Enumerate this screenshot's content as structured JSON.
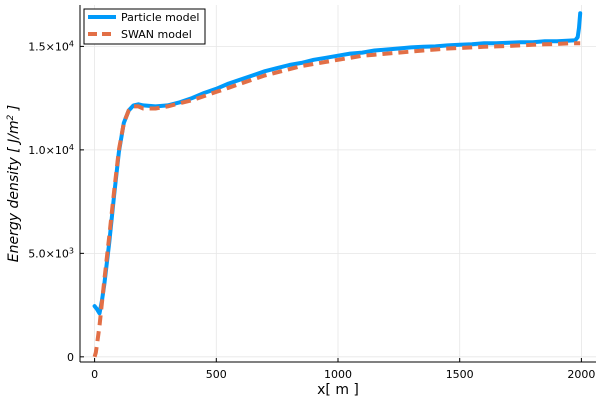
{
  "chart_data": {
    "type": "line",
    "xlabel": "x[ m ]",
    "ylabel_main": "Energy density [ J/m",
    "ylabel_sup": "2",
    "ylabel_close": " ]",
    "xlim": [
      -60,
      2060
    ],
    "ylim": [
      -250,
      17000
    ],
    "grid": true,
    "legend_position": "top-left",
    "x_ticks": [
      {
        "value": 0,
        "label": "0"
      },
      {
        "value": 500,
        "label": "500"
      },
      {
        "value": 1000,
        "label": "1000"
      },
      {
        "value": 1500,
        "label": "1500"
      },
      {
        "value": 2000,
        "label": "2000"
      }
    ],
    "y_ticks": [
      {
        "value": 0,
        "label": "0",
        "mant": "",
        "exp": ""
      },
      {
        "value": 5000,
        "label": "",
        "mant": "5.0×10",
        "exp": "3"
      },
      {
        "value": 10000,
        "label": "",
        "mant": "1.0×10",
        "exp": "4"
      },
      {
        "value": 15000,
        "label": "",
        "mant": "1.5×10",
        "exp": "4"
      }
    ],
    "series": [
      {
        "name": "Particle model",
        "color": "#009AFA",
        "dashed": false,
        "x": [
          0,
          10,
          20,
          30,
          40,
          60,
          80,
          100,
          120,
          140,
          160,
          180,
          200,
          250,
          300,
          350,
          400,
          450,
          500,
          550,
          600,
          650,
          700,
          750,
          800,
          850,
          900,
          950,
          1000,
          1050,
          1100,
          1150,
          1200,
          1250,
          1300,
          1350,
          1400,
          1450,
          1500,
          1550,
          1600,
          1650,
          1700,
          1750,
          1800,
          1850,
          1900,
          1950,
          1975,
          1985,
          1990,
          1995
        ],
        "y": [
          2450,
          2300,
          2100,
          2700,
          3500,
          5500,
          7800,
          9900,
          11300,
          11900,
          12150,
          12200,
          12150,
          12100,
          12150,
          12300,
          12500,
          12750,
          12950,
          13200,
          13400,
          13600,
          13800,
          13950,
          14100,
          14200,
          14350,
          14450,
          14550,
          14650,
          14700,
          14800,
          14850,
          14900,
          14950,
          14980,
          15000,
          15050,
          15080,
          15100,
          15150,
          15150,
          15180,
          15200,
          15200,
          15250,
          15250,
          15280,
          15300,
          15450,
          15900,
          16600
        ]
      },
      {
        "name": "SWAN model",
        "color": "#E26F46",
        "dashed": true,
        "x": [
          0,
          5,
          10,
          20,
          30,
          40,
          60,
          80,
          100,
          120,
          140,
          160,
          180,
          200,
          250,
          300,
          350,
          400,
          450,
          500,
          550,
          600,
          650,
          700,
          750,
          800,
          850,
          900,
          950,
          1000,
          1050,
          1100,
          1150,
          1200,
          1250,
          1300,
          1350,
          1400,
          1450,
          1500,
          1550,
          1600,
          1650,
          1700,
          1750,
          1800,
          1850,
          1900,
          1950,
          1995
        ],
        "y": [
          0,
          200,
          600,
          1500,
          2600,
          3700,
          5800,
          8000,
          10000,
          11300,
          11900,
          12100,
          12100,
          12000,
          12000,
          12100,
          12250,
          12400,
          12600,
          12800,
          13000,
          13200,
          13400,
          13600,
          13750,
          13900,
          14050,
          14150,
          14250,
          14350,
          14450,
          14550,
          14600,
          14650,
          14700,
          14750,
          14800,
          14850,
          14900,
          14920,
          14950,
          14980,
          15000,
          15020,
          15050,
          15080,
          15100,
          15120,
          15150,
          15150
        ]
      }
    ]
  }
}
